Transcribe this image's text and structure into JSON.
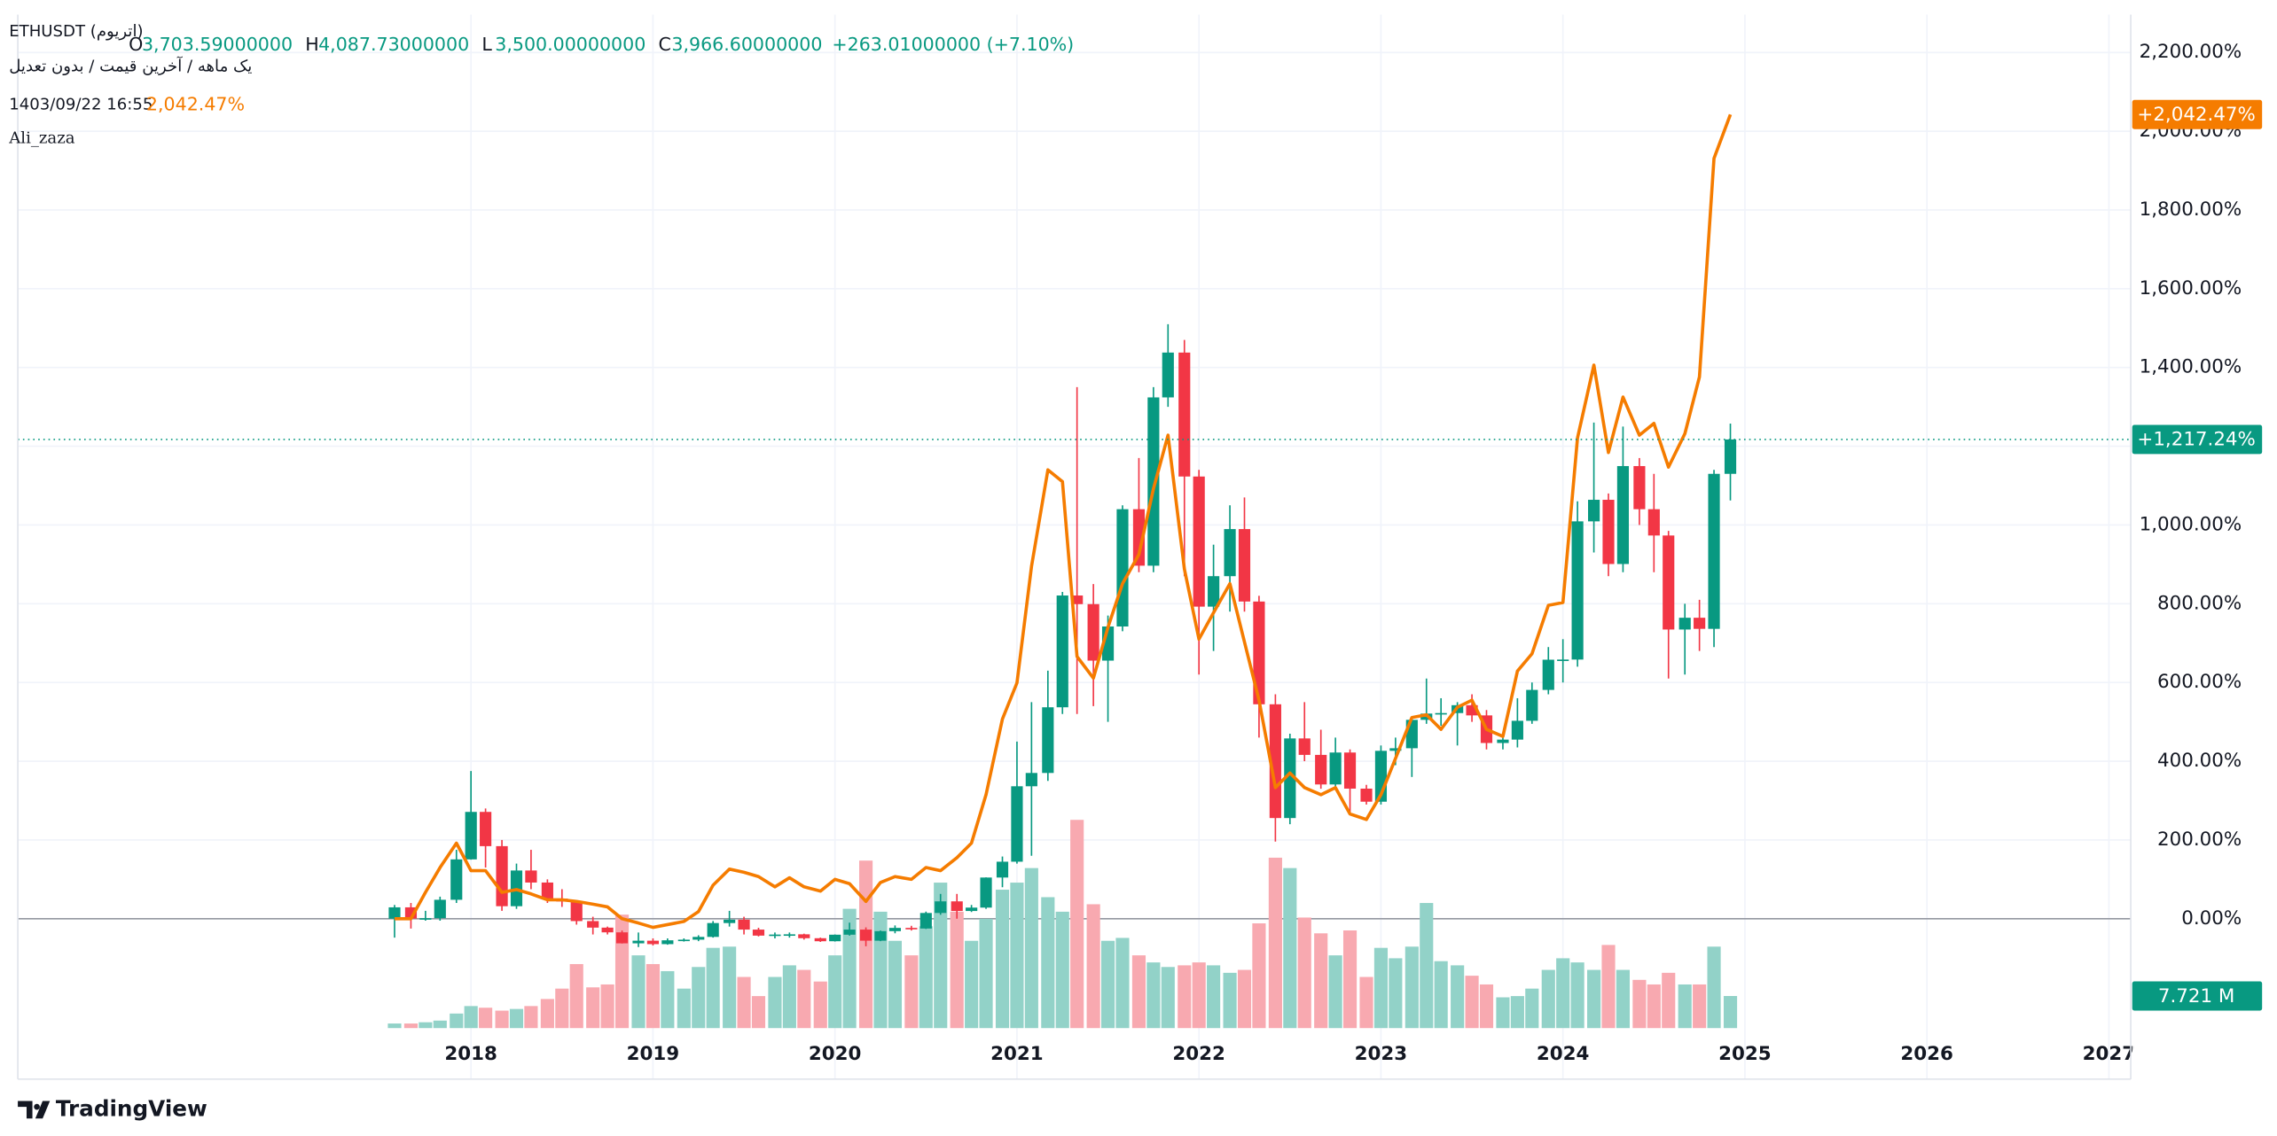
{
  "header": {
    "symbol": "ETHUSDT (اتریوم)",
    "ohlc": [
      {
        "label": "O",
        "value": "3,703.59000000"
      },
      {
        "label": "H",
        "value": "4,087.73000000"
      },
      {
        "label": "L",
        "value": "3,500.00000000"
      },
      {
        "label": "C",
        "value": "3,966.60000000"
      }
    ],
    "change": "+263.01000000 (+7.10%)",
    "interval": "یک ماهه / آخرین قیمت / بدون تعدیل",
    "compare_date": "1403/09/22 16:55",
    "compare_value": "2,042.47%",
    "author": "Ali_zaza"
  },
  "brand": "TradingView",
  "chart_data": {
    "type": "candlestick",
    "x": [
      2017.58,
      2017.67,
      2017.75,
      2017.83,
      2017.92,
      2018.0,
      2018.08,
      2018.17,
      2018.25,
      2018.33,
      2018.42,
      2018.5,
      2018.58,
      2018.67,
      2018.75,
      2018.83,
      2018.92,
      2019.0,
      2019.08,
      2019.17,
      2019.25,
      2019.33,
      2019.42,
      2019.5,
      2019.58,
      2019.67,
      2019.75,
      2019.83,
      2019.92,
      2020.0,
      2020.08,
      2020.17,
      2020.25,
      2020.33,
      2020.42,
      2020.5,
      2020.58,
      2020.67,
      2020.75,
      2020.83,
      2020.92,
      2021.0,
      2021.08,
      2021.17,
      2021.25,
      2021.33,
      2021.42,
      2021.5,
      2021.58,
      2021.67,
      2021.75,
      2021.83,
      2021.92,
      2022.0,
      2022.08,
      2022.17,
      2022.25,
      2022.33,
      2022.42,
      2022.5,
      2022.58,
      2022.67,
      2022.75,
      2022.83,
      2022.92,
      2023.0,
      2023.08,
      2023.17,
      2023.25,
      2023.33,
      2023.42,
      2023.5,
      2023.58,
      2023.67,
      2023.75,
      2023.83,
      2023.92,
      2024.0,
      2024.08,
      2024.17,
      2024.25,
      2024.33,
      2024.42,
      2024.5,
      2024.58,
      2024.67,
      2024.75,
      2024.83,
      2024.92
    ],
    "open": [
      0,
      28.9,
      0.3,
      1.3,
      48.1,
      150.7,
      271.3,
      184.3,
      31.8,
      122.5,
      91.9,
      51.1,
      43.8,
      -6.0,
      -22.6,
      -34.6,
      -62.5,
      -55.8,
      -64.5,
      -54.8,
      -53.2,
      -46.2,
      -11.0,
      -2.4,
      -27.6,
      -42.9,
      -40.2,
      -39.6,
      -49.5,
      -57.2,
      -40.6,
      -27.6,
      -55.8,
      -31.6,
      -23.3,
      -24.9,
      14.6,
      44.1,
      19.6,
      28.2,
      104.6,
      144.8,
      336.4,
      370.2,
      537.0,
      820.9,
      799.0,
      655.5,
      742.2,
      1040.1,
      896.6,
      1324.0,
      1437.9,
      1123.1,
      792.6,
      870.0,
      989.6,
      805.6,
      544.6,
      255.7,
      457.9,
      416.1,
      341.0,
      422.1,
      330.4,
      297.2,
      426.4,
      433.0,
      505.1,
      521.0,
      522.3,
      542.3,
      516.4,
      446.3,
      454.9,
      502.7,
      581.1,
      657.8,
      658.2,
      1009.2,
      1064.0,
      900.9,
      1149.6,
      1040.1,
      973.3,
      734.5,
      764.4,
      736.2,
      1129.9
    ],
    "high": [
      35,
      40,
      20,
      56,
      175,
      375,
      280,
      200,
      140,
      175,
      100,
      75,
      45,
      5,
      -20,
      -30,
      -35,
      -50,
      -50,
      -50,
      -42,
      -6,
      20,
      5,
      -23,
      -35,
      -35,
      -38,
      -48,
      -40,
      -10,
      -22,
      -30,
      -17,
      -18,
      18,
      63,
      63,
      35,
      105,
      158,
      450,
      550,
      630,
      830,
      1350,
      850,
      770,
      1050,
      1170,
      1350,
      1510,
      1470,
      1140,
      950,
      1050,
      1070,
      820,
      570,
      470,
      550,
      480,
      460,
      430,
      340,
      440,
      460,
      510,
      610,
      560,
      550,
      570,
      530,
      470,
      560,
      600,
      690,
      710,
      1060,
      1260,
      1080,
      1250,
      1170,
      1130,
      985,
      800,
      810,
      1140,
      1257.5
    ],
    "low": [
      -48,
      -25,
      -5,
      -5,
      40,
      150,
      130,
      20,
      25,
      75,
      40,
      30,
      -15,
      -40,
      -40,
      -63,
      -72,
      -68,
      -66,
      -58,
      -57,
      -48,
      -20,
      -40,
      -45,
      -50,
      -48,
      -53,
      -59,
      -58,
      -43,
      -70,
      -57,
      -37,
      -30,
      -26,
      10,
      0,
      17,
      25,
      80,
      140,
      160,
      350,
      520,
      520,
      540,
      500,
      730,
      880,
      880,
      1300,
      870,
      620,
      680,
      780,
      780,
      460,
      196,
      240,
      400,
      330,
      330,
      270,
      290,
      290,
      390,
      360,
      495,
      490,
      440,
      500,
      430,
      430,
      435,
      495,
      570,
      600,
      640,
      930,
      870,
      880,
      1000,
      880,
      610,
      620,
      680,
      690,
      1062.3
    ],
    "close": [
      28.9,
      0.3,
      1.3,
      48.1,
      150.7,
      271.3,
      184.3,
      31.8,
      122.5,
      91.9,
      51.1,
      43.8,
      -6.0,
      -22.6,
      -34.6,
      -62.5,
      -55.8,
      -64.5,
      -54.8,
      -53.2,
      -46.2,
      -11.0,
      -2.4,
      -27.6,
      -42.9,
      -40.2,
      -39.6,
      -49.5,
      -57.2,
      -40.6,
      -27.6,
      -55.8,
      -31.6,
      -23.3,
      -24.9,
      14.6,
      44.1,
      19.6,
      28.2,
      104.6,
      144.8,
      336.4,
      370.2,
      537.0,
      820.9,
      799.0,
      655.5,
      742.2,
      1040.1,
      896.6,
      1324.0,
      1437.9,
      1123.1,
      792.6,
      870.0,
      989.6,
      805.6,
      544.6,
      255.7,
      457.9,
      416.1,
      341.0,
      422.1,
      330.4,
      297.2,
      426.4,
      433.0,
      505.1,
      521.0,
      522.3,
      542.3,
      516.4,
      446.3,
      454.9,
      502.7,
      581.1,
      657.8,
      658.2,
      1009.2,
      1064.0,
      900.9,
      1149.6,
      1040.1,
      973.3,
      734.5,
      764.4,
      736.2,
      1129.9,
      1217.24
    ],
    "volume": [
      1.1,
      1.1,
      1.4,
      1.8,
      3.5,
      5.3,
      4.9,
      4.2,
      4.6,
      5.3,
      7.0,
      9.5,
      15.4,
      9.8,
      10.5,
      27.3,
      17.5,
      15.4,
      13.7,
      9.5,
      14.7,
      19.3,
      19.6,
      12.3,
      7.7,
      12.3,
      15.1,
      14.0,
      11.2,
      17.5,
      28.7,
      40.3,
      28.0,
      21.0,
      17.5,
      24.5,
      35.0,
      28.0,
      21.0,
      26.3,
      33.3,
      35.0,
      38.5,
      31.5,
      28.0,
      50.1,
      29.8,
      21.0,
      21.7,
      17.5,
      15.8,
      14.7,
      15.1,
      15.8,
      15.1,
      13.3,
      14.0,
      25.2,
      41.0,
      38.5,
      26.6,
      22.8,
      17.5,
      23.5,
      12.3,
      19.3,
      16.8,
      19.6,
      30.1,
      16.1,
      15.1,
      12.6,
      10.5,
      7.4,
      7.7,
      9.5,
      14.0,
      16.8,
      15.8,
      14.0,
      20.0,
      14.0,
      11.6,
      10.5,
      13.3,
      10.5,
      10.5,
      19.6,
      7.721
    ],
    "volume_label": "7.721 M",
    "last_label": "+1,217.24%",
    "up_color": "#089981",
    "down_color": "#f23645",
    "volume_up_color": "#92d2c8",
    "volume_down_color": "#f8a9b0",
    "compare": {
      "color": "#f57c00",
      "last_label": "+2,042.47%",
      "values": [
        0,
        0,
        67,
        130,
        192,
        122,
        122,
        67,
        74,
        63,
        48,
        48,
        44,
        37,
        30,
        0,
        -11,
        -22,
        -15,
        -7,
        18,
        85,
        126,
        118,
        107,
        81,
        104,
        81,
        70,
        100,
        89,
        44,
        92,
        107,
        100,
        130,
        122,
        155,
        192,
        315,
        507,
        599,
        895,
        1140,
        1110,
        666,
        611,
        740,
        851,
        925,
        1092,
        1228,
        888,
        710,
        777,
        851,
        703,
        555,
        333,
        370,
        333,
        315,
        333,
        266,
        252,
        315,
        407,
        511,
        518,
        481,
        537,
        555,
        481,
        463,
        629,
        673,
        796,
        803,
        1221,
        1406,
        1184,
        1325,
        1228,
        1258,
        1147,
        1232,
        1376,
        1931,
        2042.47
      ]
    },
    "xlim": [
      2015.51,
      2027.12
    ],
    "xticks": [
      2018,
      2019,
      2020,
      2021,
      2022,
      2023,
      2024,
      2025,
      2026,
      2027
    ],
    "ylim": [
      -407.4,
      2296.3
    ],
    "yticks": [
      {
        "value": 0,
        "label": "0.00%"
      },
      {
        "value": 200,
        "label": "200.00%"
      },
      {
        "value": 400,
        "label": "400.00%"
      },
      {
        "value": 600,
        "label": "600.00%"
      },
      {
        "value": 800,
        "label": "800.00%"
      },
      {
        "value": 1000,
        "label": "1,000.00%"
      },
      {
        "value": 1200,
        "label": "1,200.00%"
      },
      {
        "value": 1400,
        "label": "1,400.00%"
      },
      {
        "value": 1600,
        "label": "1,600.00%"
      },
      {
        "value": 1800,
        "label": "1,800.00%"
      },
      {
        "value": 2000,
        "label": "2,000.00%"
      },
      {
        "value": 2200,
        "label": "2,200.00%"
      }
    ],
    "grid": true
  }
}
